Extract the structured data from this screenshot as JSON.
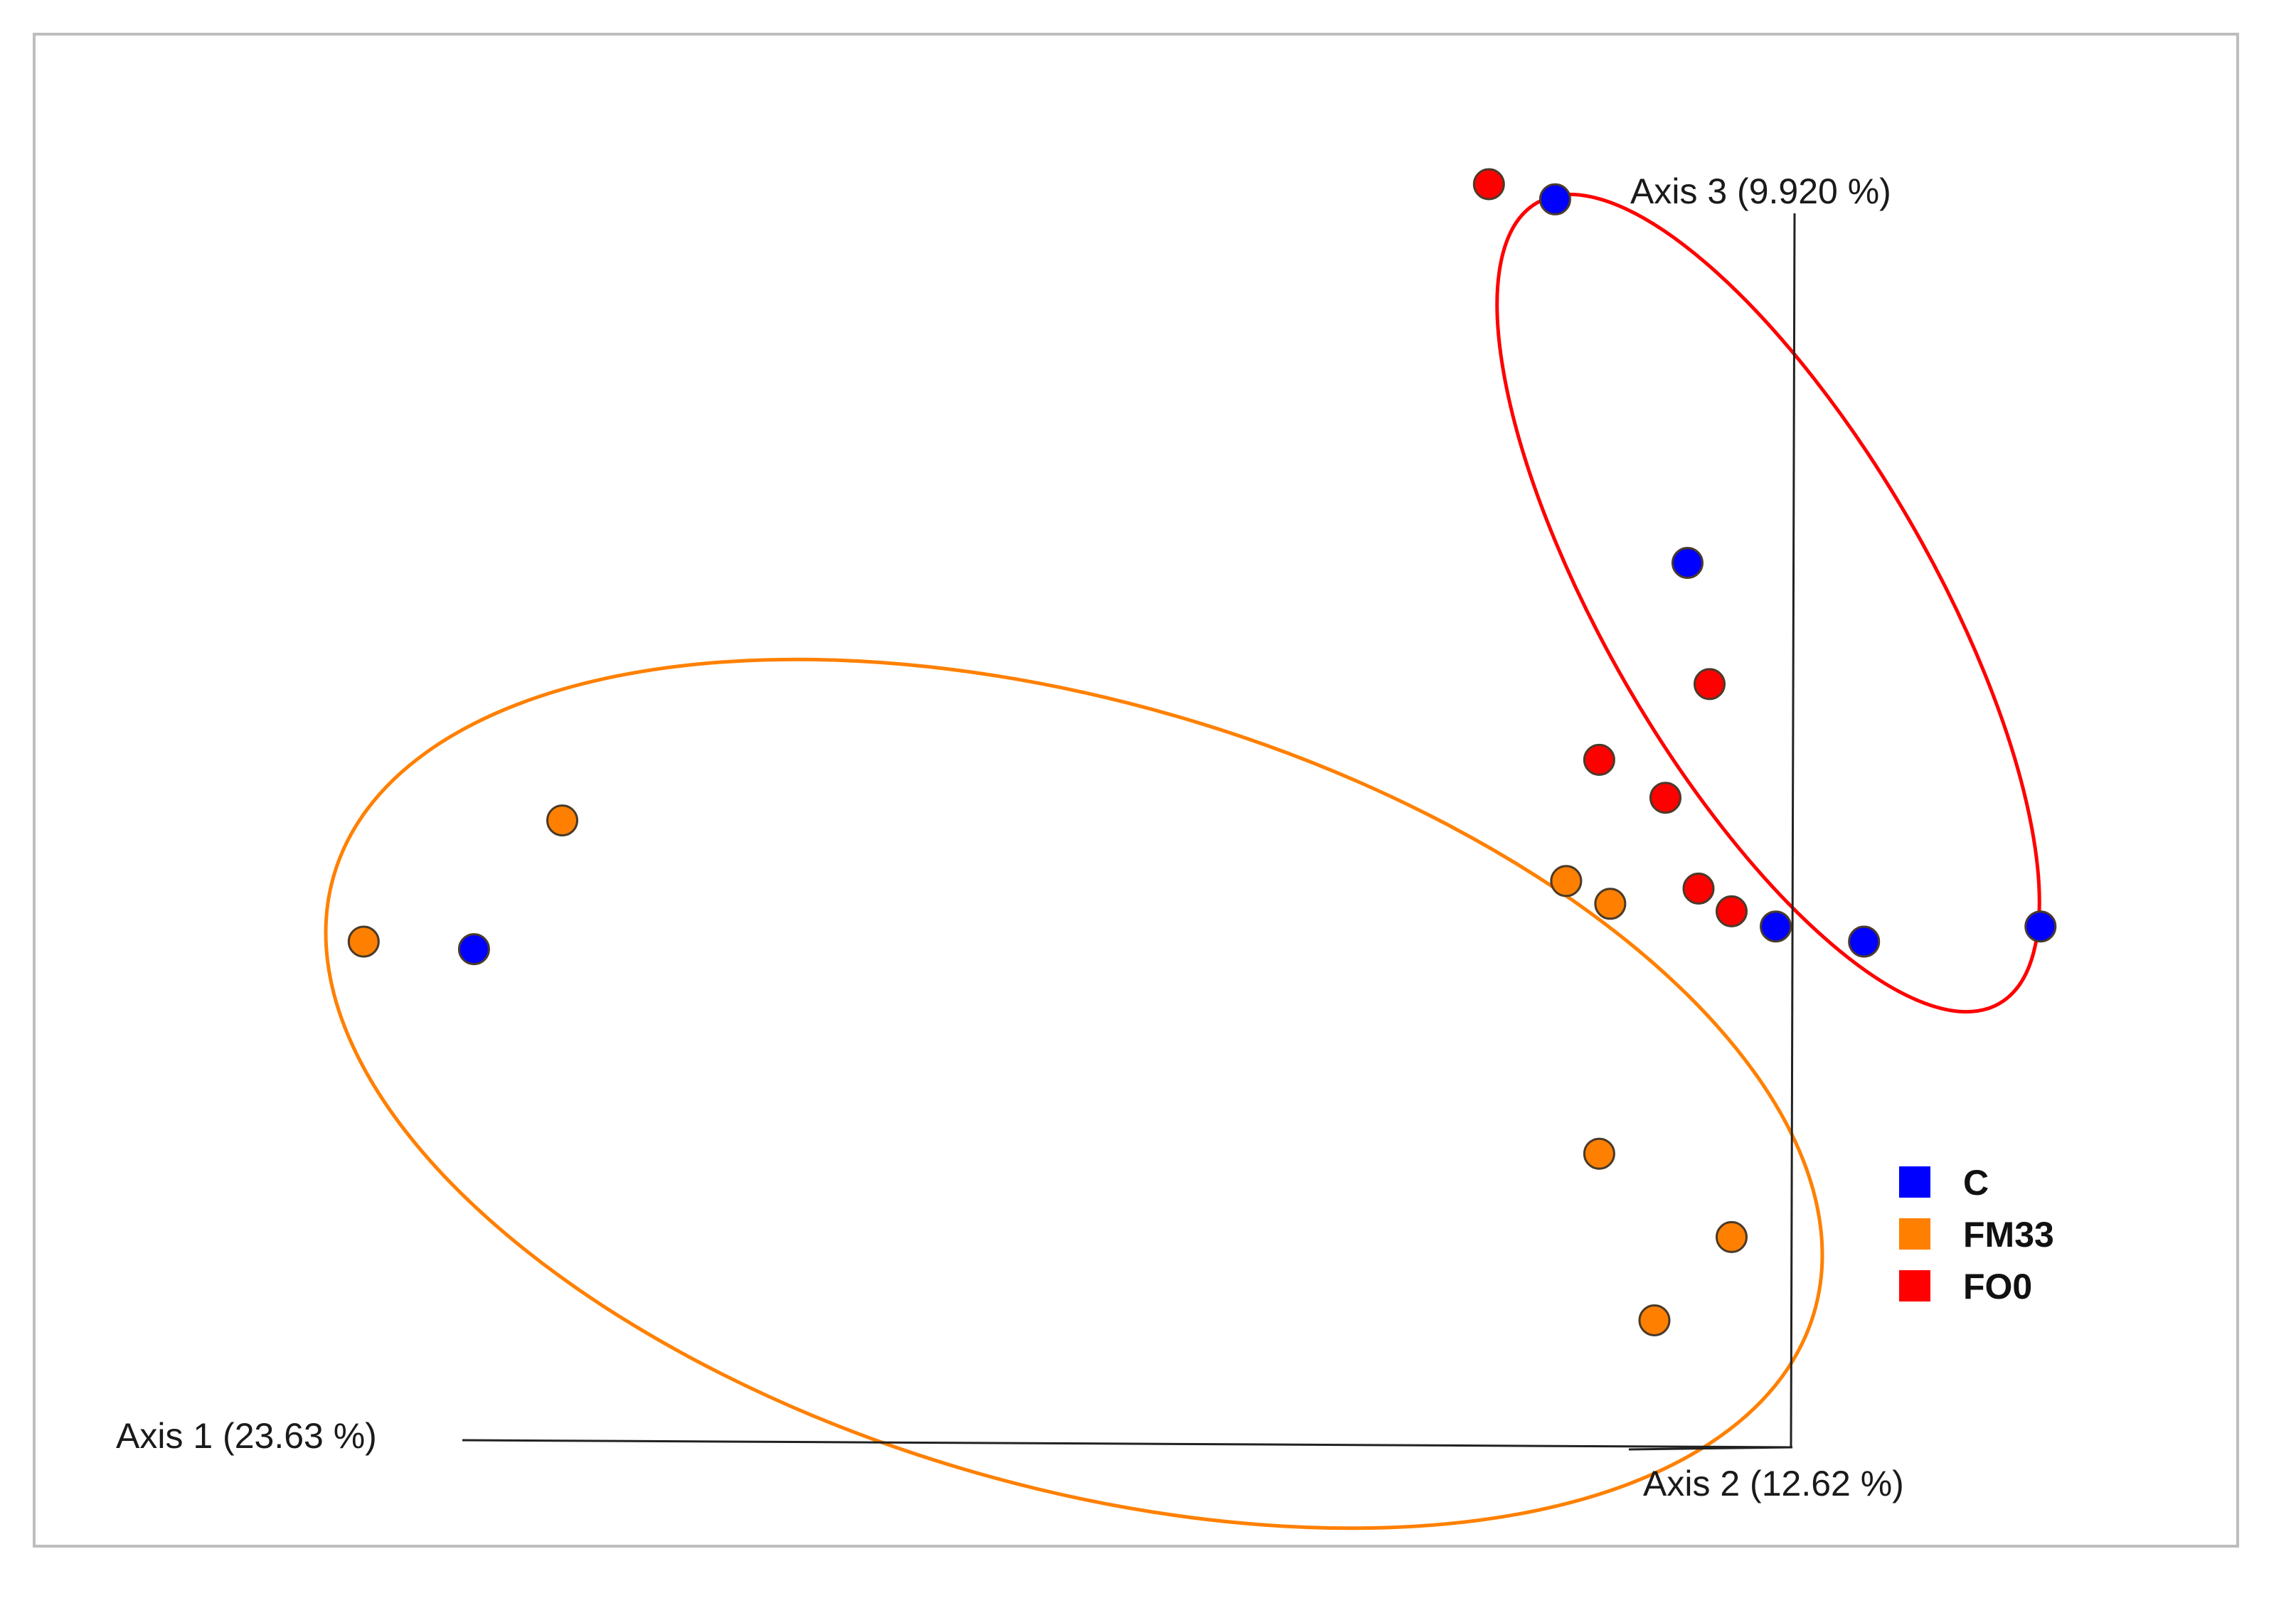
{
  "chart_data": {
    "type": "scatter",
    "subtype": "3d-pcoa",
    "title": "",
    "axes": {
      "axis1_label": "Axis 1 (23.63 %)",
      "axis2_label": "Axis 2 (12.62 %)",
      "axis3_label": "Axis 3 (9.920 %)"
    },
    "legend": {
      "placement": "right",
      "items": [
        {
          "name": "C",
          "color": "#0000ff"
        },
        {
          "name": "FM33",
          "color": "#ff8000"
        },
        {
          "name": "FO0",
          "color": "#ff0000"
        }
      ]
    },
    "series": [
      {
        "name": "C",
        "color": "#0000ff",
        "points": [
          [
            0.69,
            0.11
          ],
          [
            0.75,
            0.35
          ],
          [
            0.79,
            0.59
          ],
          [
            0.91,
            0.59
          ],
          [
            0.83,
            0.6
          ],
          [
            0.2,
            0.605
          ]
        ]
      },
      {
        "name": "FM33",
        "color": "#ff8000",
        "points": [
          [
            0.24,
            0.52
          ],
          [
            0.15,
            0.6
          ],
          [
            0.695,
            0.56
          ],
          [
            0.715,
            0.575
          ],
          [
            0.71,
            0.74
          ],
          [
            0.77,
            0.795
          ],
          [
            0.735,
            0.85
          ]
        ]
      },
      {
        "name": "FO0",
        "color": "#ff0000",
        "points": [
          [
            0.66,
            0.1
          ],
          [
            0.76,
            0.43
          ],
          [
            0.71,
            0.48
          ],
          [
            0.74,
            0.505
          ],
          [
            0.755,
            0.565
          ],
          [
            0.77,
            0.58
          ]
        ]
      }
    ],
    "ellipses": [
      {
        "group": "FM33",
        "color": "#ff8000"
      },
      {
        "group": "FO0",
        "color": "#ff0000"
      }
    ],
    "grid": false
  }
}
